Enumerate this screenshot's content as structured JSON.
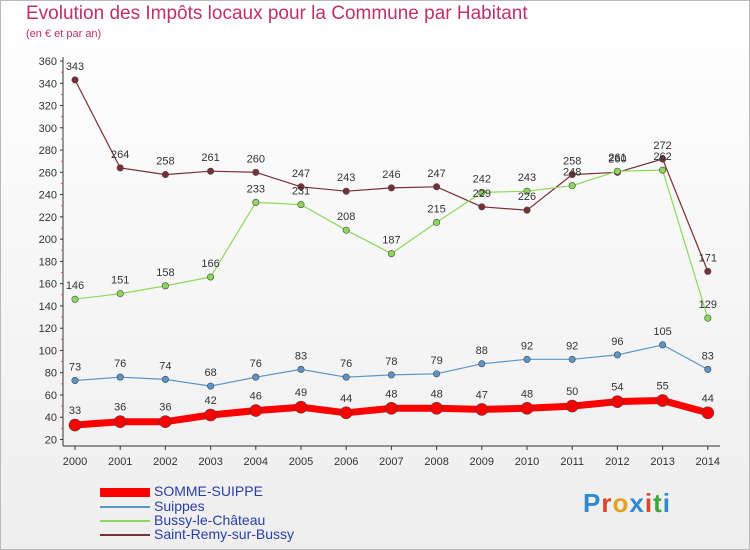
{
  "title": "Evolution des Impôts locaux pour la Commune par Habitant",
  "subtitle": "(en € et par an)",
  "logo": {
    "letters": [
      "P",
      "r",
      "o",
      "x",
      "i",
      "t",
      "i"
    ]
  },
  "colors": {
    "title": "#c0306a",
    "SOMME-SUIPPE": "#ff0000",
    "Suippes": "#5b95c8",
    "Bussy-le-Château": "#8cd95a",
    "Saint-Remy-sur-Bussy": "#7a2f36",
    "logo": [
      "#2f8ad0",
      "#e0422a",
      "#e3a31f",
      "#2f8ad0",
      "#e0422a",
      "#3fa63f",
      "#2f8ad0"
    ]
  },
  "chart_data": {
    "type": "line",
    "title": "Evolution des Impôts locaux pour la Commune par Habitant",
    "subtitle": "(en € et par an)",
    "x": [
      "2000",
      "2001",
      "2002",
      "2003",
      "2004",
      "2005",
      "2006",
      "2007",
      "2008",
      "2009",
      "2010",
      "2011",
      "2012",
      "2013",
      "2014"
    ],
    "yticks": [
      20,
      40,
      60,
      80,
      100,
      120,
      140,
      160,
      180,
      200,
      220,
      240,
      260,
      280,
      300,
      320,
      340,
      360
    ],
    "ylim": [
      20,
      360
    ],
    "grid": false,
    "legend": "bottom-left",
    "series": [
      {
        "name": "SOMME-SUIPPE",
        "values": [
          33,
          36,
          36,
          42,
          46,
          49,
          44,
          48,
          48,
          47,
          48,
          50,
          54,
          55,
          44
        ]
      },
      {
        "name": "Suippes",
        "values": [
          73,
          76,
          74,
          68,
          76,
          83,
          76,
          78,
          79,
          88,
          92,
          92,
          96,
          105,
          83
        ]
      },
      {
        "name": "Bussy-le-Château",
        "values": [
          146,
          151,
          158,
          166,
          233,
          231,
          208,
          187,
          215,
          242,
          243,
          248,
          261,
          262,
          129
        ]
      },
      {
        "name": "Saint-Remy-sur-Bussy",
        "values": [
          343,
          264,
          258,
          261,
          260,
          247,
          243,
          246,
          247,
          229,
          226,
          258,
          260,
          272,
          171
        ]
      }
    ],
    "data_labels": [
      {
        "series": "SOMME-SUIPPE",
        "labels": [
          "33",
          "36",
          "36",
          "42",
          "46",
          "49",
          "44",
          "48",
          "48",
          "47",
          "48",
          "50",
          "54",
          "55",
          "44"
        ]
      },
      {
        "series": "Suippes",
        "labels": [
          "73",
          "76",
          "74",
          "68",
          "76",
          "83",
          "76",
          "78",
          "79",
          "88",
          "92",
          "92",
          "96",
          "105",
          "83"
        ]
      },
      {
        "series": "Bussy-le-Château",
        "labels": [
          "146",
          "151",
          "158",
          "166",
          "233",
          "231",
          "208",
          "187",
          "215",
          "242",
          "243",
          "248",
          "261",
          "262",
          "129"
        ]
      },
      {
        "series": "Saint-Remy-sur-Bussy",
        "labels": [
          "343",
          "264",
          "258",
          "261",
          "260",
          "247",
          "243",
          "246",
          "247",
          "229",
          "226",
          "258",
          "260",
          "272",
          "171"
        ]
      }
    ]
  }
}
